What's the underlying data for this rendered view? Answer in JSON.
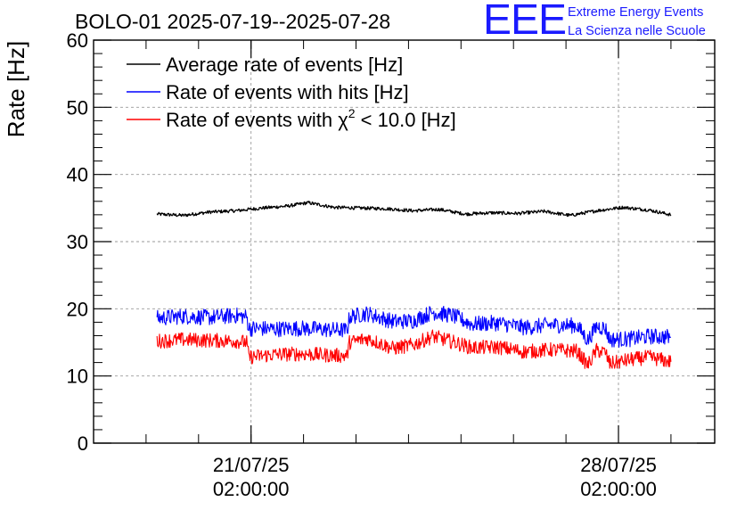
{
  "header": {
    "title": "BOLO-01 2025-07-19--2025-07-28",
    "logo_text": "EEE",
    "logo_line1": "Extreme Energy Events",
    "logo_line2": "La Scienza nelle Scuole"
  },
  "chart_data": {
    "type": "line",
    "title": "BOLO-01 2025-07-19--2025-07-28",
    "xlabel": "",
    "ylabel": "Rate [Hz]",
    "ylim": [
      0,
      60
    ],
    "yticks": [
      0,
      10,
      20,
      30,
      40,
      50,
      60
    ],
    "xlim": [
      "2025-07-18T02:00:00",
      "2025-07-29T22:00:00"
    ],
    "xticks": [
      {
        "at": "2025-07-21T02:00:00",
        "date": "21/07/25",
        "time": "02:00:00"
      },
      {
        "at": "2025-07-28T02:00:00",
        "date": "28/07/25",
        "time": "02:00:00"
      }
    ],
    "grid": true,
    "legend_position": "top-left",
    "series": [
      {
        "name": "Average rate of events [Hz]",
        "color": "#000000",
        "noise": 0.25,
        "points": [
          [
            "2025-07-19T07:00:00",
            34.1
          ],
          [
            "2025-07-19T19:00:00",
            33.9
          ],
          [
            "2025-07-20T07:00:00",
            34.4
          ],
          [
            "2025-07-20T19:00:00",
            34.6
          ],
          [
            "2025-07-21T07:00:00",
            35.0
          ],
          [
            "2025-07-21T19:00:00",
            35.3
          ],
          [
            "2025-07-22T04:00:00",
            35.8
          ],
          [
            "2025-07-22T16:00:00",
            35.1
          ],
          [
            "2025-07-23T04:00:00",
            35.0
          ],
          [
            "2025-07-23T16:00:00",
            34.9
          ],
          [
            "2025-07-24T04:00:00",
            34.6
          ],
          [
            "2025-07-24T16:00:00",
            34.8
          ],
          [
            "2025-07-25T04:00:00",
            34.1
          ],
          [
            "2025-07-25T16:00:00",
            34.3
          ],
          [
            "2025-07-26T04:00:00",
            34.2
          ],
          [
            "2025-07-26T16:00:00",
            34.5
          ],
          [
            "2025-07-27T04:00:00",
            33.9
          ],
          [
            "2025-07-27T16:00:00",
            34.6
          ],
          [
            "2025-07-28T04:00:00",
            35.1
          ],
          [
            "2025-07-28T16:00:00",
            34.7
          ],
          [
            "2025-07-29T02:00:00",
            34.0
          ]
        ]
      },
      {
        "name": "Rate of events with hits [Hz]",
        "color": "#0000ff",
        "noise": 1.2,
        "points": [
          [
            "2025-07-19T07:00:00",
            18.6
          ],
          [
            "2025-07-19T19:00:00",
            18.9
          ],
          [
            "2025-07-20T07:00:00",
            18.7
          ],
          [
            "2025-07-20T19:00:00",
            19.0
          ],
          [
            "2025-07-21T00:00:00",
            18.8
          ],
          [
            "2025-07-21T01:00:00",
            17.1
          ],
          [
            "2025-07-21T13:00:00",
            17.0
          ],
          [
            "2025-07-22T01:00:00",
            17.1
          ],
          [
            "2025-07-22T13:00:00",
            16.9
          ],
          [
            "2025-07-22T22:00:00",
            16.8
          ],
          [
            "2025-07-22T23:00:00",
            18.8
          ],
          [
            "2025-07-23T07:00:00",
            19.3
          ],
          [
            "2025-07-23T19:00:00",
            18.1
          ],
          [
            "2025-07-24T04:00:00",
            18.2
          ],
          [
            "2025-07-24T13:00:00",
            19.5
          ],
          [
            "2025-07-24T22:00:00",
            19.0
          ],
          [
            "2025-07-25T07:00:00",
            17.7
          ],
          [
            "2025-07-25T19:00:00",
            17.9
          ],
          [
            "2025-07-26T07:00:00",
            17.2
          ],
          [
            "2025-07-26T19:00:00",
            17.6
          ],
          [
            "2025-07-27T07:00:00",
            17.5
          ],
          [
            "2025-07-27T12:00:00",
            15.3
          ],
          [
            "2025-07-27T16:00:00",
            17.4
          ],
          [
            "2025-07-27T20:00:00",
            17.1
          ],
          [
            "2025-07-27T22:00:00",
            15.4
          ],
          [
            "2025-07-28T07:00:00",
            15.5
          ],
          [
            "2025-07-28T16:00:00",
            15.9
          ],
          [
            "2025-07-29T02:00:00",
            15.8
          ]
        ]
      },
      {
        "name": "Rate of events with χ² < 10.0 [Hz]",
        "color": "#ff0000",
        "noise": 1.1,
        "points": [
          [
            "2025-07-19T07:00:00",
            15.2
          ],
          [
            "2025-07-19T19:00:00",
            15.4
          ],
          [
            "2025-07-20T07:00:00",
            15.3
          ],
          [
            "2025-07-20T19:00:00",
            15.2
          ],
          [
            "2025-07-21T00:00:00",
            15.0
          ],
          [
            "2025-07-21T01:00:00",
            12.8
          ],
          [
            "2025-07-21T13:00:00",
            13.2
          ],
          [
            "2025-07-22T01:00:00",
            13.3
          ],
          [
            "2025-07-22T13:00:00",
            13.1
          ],
          [
            "2025-07-22T22:00:00",
            13.0
          ],
          [
            "2025-07-22T23:00:00",
            15.0
          ],
          [
            "2025-07-23T07:00:00",
            15.6
          ],
          [
            "2025-07-23T19:00:00",
            14.1
          ],
          [
            "2025-07-24T04:00:00",
            14.6
          ],
          [
            "2025-07-24T13:00:00",
            15.9
          ],
          [
            "2025-07-24T22:00:00",
            15.1
          ],
          [
            "2025-07-25T07:00:00",
            14.2
          ],
          [
            "2025-07-25T19:00:00",
            14.3
          ],
          [
            "2025-07-26T07:00:00",
            13.6
          ],
          [
            "2025-07-26T19:00:00",
            13.9
          ],
          [
            "2025-07-27T07:00:00",
            13.7
          ],
          [
            "2025-07-27T12:00:00",
            11.6
          ],
          [
            "2025-07-27T16:00:00",
            13.8
          ],
          [
            "2025-07-27T20:00:00",
            13.5
          ],
          [
            "2025-07-27T22:00:00",
            11.8
          ],
          [
            "2025-07-28T07:00:00",
            12.4
          ],
          [
            "2025-07-28T16:00:00",
            12.8
          ],
          [
            "2025-07-29T02:00:00",
            12.1
          ]
        ]
      }
    ]
  },
  "legend": {
    "avg_label": "Average rate of events [Hz]",
    "hits_label": "Rate of events with hits [Hz]",
    "chi_prefix": "Rate of events with χ",
    "chi_sup": "2",
    "chi_suffix": " < 10.0 [Hz]"
  }
}
